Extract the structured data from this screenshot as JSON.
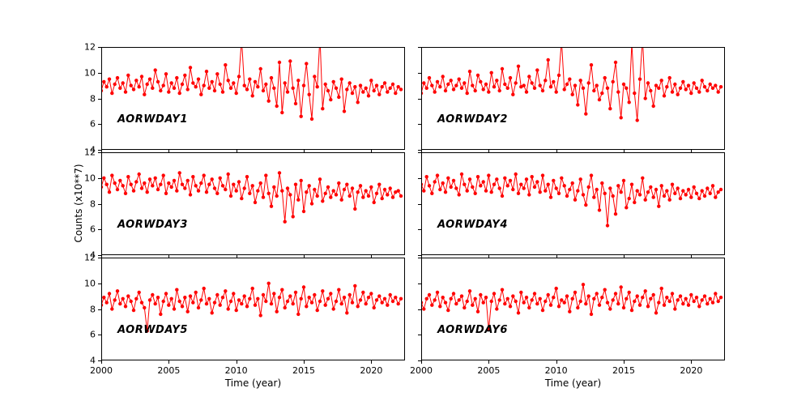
{
  "chart_data": {
    "type": "line",
    "layout": "3 rows x 2 columns of subplots",
    "marker": "circle",
    "line_color": "#ff0000",
    "marker_color": "#ff0000",
    "background": "#ffffff",
    "xlabel": "Time (year)",
    "ylabel": "Counts (x10**7)",
    "xlim": [
      2000,
      2022.5
    ],
    "ylim": [
      4,
      12
    ],
    "x_ticks": [
      2000,
      2005,
      2010,
      2015,
      2020
    ],
    "y_ticks": [
      12,
      10,
      8,
      6,
      4
    ],
    "x_start": 2000,
    "x_step": 0.2,
    "series": [
      {
        "name": "AORWDAY1",
        "values": [
          8.6,
          9.3,
          8.9,
          9.5,
          8.4,
          9.1,
          9.6,
          8.8,
          9.2,
          8.5,
          9.8,
          9.0,
          8.7,
          9.4,
          8.9,
          9.7,
          8.3,
          9.1,
          9.5,
          8.8,
          10.2,
          9.3,
          8.6,
          9.0,
          9.9,
          8.5,
          9.2,
          8.8,
          9.6,
          8.4,
          9.1,
          9.8,
          8.7,
          10.4,
          9.2,
          8.9,
          9.5,
          8.3,
          9.0,
          10.1,
          8.8,
          9.3,
          8.6,
          9.9,
          9.1,
          8.5,
          10.6,
          9.4,
          8.8,
          9.2,
          8.4,
          9.7,
          12.6,
          9.0,
          8.7,
          9.5,
          8.2,
          9.3,
          8.9,
          10.3,
          8.6,
          9.1,
          7.8,
          9.6,
          8.8,
          7.4,
          10.8,
          6.9,
          9.2,
          8.5,
          10.9,
          8.8,
          7.6,
          9.4,
          6.6,
          9.0,
          10.7,
          8.3,
          6.4,
          9.7,
          8.9,
          12.8,
          7.2,
          9.1,
          8.6,
          7.9,
          9.3,
          8.8,
          8.1,
          9.5,
          7.0,
          8.7,
          9.2,
          8.4,
          8.9,
          7.7,
          9.0,
          8.5,
          8.8,
          8.2,
          9.4,
          8.6,
          9.0,
          8.3,
          8.9,
          9.2,
          8.5,
          8.8,
          9.1,
          8.4,
          8.9,
          8.7
        ]
      },
      {
        "name": "AORWDAY2",
        "values": [
          8.4,
          9.2,
          8.8,
          9.6,
          9.0,
          8.5,
          9.3,
          8.9,
          9.7,
          8.6,
          9.1,
          9.4,
          8.7,
          9.0,
          9.5,
          8.8,
          9.2,
          8.4,
          10.1,
          9.0,
          8.6,
          9.8,
          9.3,
          8.7,
          9.1,
          8.5,
          10.0,
          8.9,
          9.4,
          8.6,
          10.3,
          9.1,
          8.8,
          9.6,
          8.3,
          9.2,
          10.5,
          8.9,
          9.0,
          8.5,
          9.7,
          9.2,
          8.8,
          10.2,
          9.0,
          8.6,
          9.4,
          11.0,
          8.9,
          9.3,
          8.5,
          9.8,
          12.5,
          8.7,
          9.1,
          9.5,
          8.3,
          9.0,
          7.5,
          9.4,
          8.8,
          6.8,
          9.2,
          10.6,
          8.6,
          9.0,
          7.9,
          8.4,
          9.6,
          8.8,
          7.2,
          9.3,
          10.8,
          8.5,
          6.5,
          9.1,
          8.8,
          7.7,
          12.3,
          8.4,
          6.3,
          9.5,
          12.7,
          8.0,
          9.2,
          8.6,
          7.4,
          9.0,
          8.8,
          9.4,
          8.2,
          8.9,
          9.6,
          8.5,
          9.1,
          8.3,
          8.8,
          9.3,
          8.7,
          9.0,
          8.4,
          9.2,
          8.8,
          8.5,
          9.4,
          8.9,
          8.6,
          9.1,
          8.8,
          9.0,
          8.5,
          8.9
        ]
      },
      {
        "name": "AORWDAY3",
        "values": [
          9.3,
          10.0,
          9.5,
          8.9,
          10.2,
          9.6,
          9.1,
          9.8,
          9.4,
          8.8,
          10.1,
          9.5,
          9.0,
          9.7,
          10.3,
          9.2,
          9.6,
          8.9,
          9.9,
          9.4,
          10.0,
          9.1,
          9.5,
          10.2,
          8.8,
          9.6,
          9.3,
          9.8,
          9.0,
          10.4,
          9.5,
          9.2,
          9.8,
          8.7,
          10.1,
          9.4,
          9.0,
          9.6,
          10.2,
          8.9,
          9.5,
          9.9,
          9.2,
          8.8,
          10.0,
          9.4,
          9.1,
          10.3,
          8.6,
          9.5,
          9.0,
          9.7,
          8.4,
          9.2,
          10.1,
          8.8,
          9.4,
          8.1,
          9.0,
          9.6,
          8.5,
          10.2,
          8.8,
          7.8,
          9.3,
          8.6,
          10.4,
          9.0,
          6.6,
          9.2,
          8.7,
          7.0,
          9.5,
          8.3,
          9.8,
          7.4,
          8.9,
          9.4,
          8.0,
          9.1,
          8.6,
          9.9,
          8.2,
          8.8,
          9.3,
          8.5,
          9.0,
          8.7,
          9.6,
          8.3,
          9.1,
          9.5,
          8.6,
          9.2,
          7.6,
          8.9,
          9.4,
          8.5,
          9.0,
          8.6,
          9.3,
          8.1,
          8.8,
          9.5,
          8.4,
          9.1,
          8.7,
          9.2,
          8.5,
          8.9,
          9.0,
          8.6
        ]
      },
      {
        "name": "AORWDAY4",
        "values": [
          9.5,
          9.0,
          10.1,
          9.4,
          8.8,
          9.7,
          10.2,
          9.1,
          9.6,
          8.9,
          10.0,
          9.3,
          9.8,
          9.2,
          8.7,
          10.3,
          9.5,
          9.0,
          9.9,
          9.3,
          8.8,
          10.1,
          9.4,
          9.7,
          9.0,
          10.2,
          8.9,
          9.5,
          9.9,
          9.2,
          8.6,
          10.0,
          9.4,
          9.8,
          9.1,
          10.3,
          8.8,
          9.5,
          9.2,
          9.9,
          8.7,
          10.1,
          9.3,
          9.7,
          8.9,
          10.2,
          9.0,
          9.5,
          8.5,
          9.8,
          9.2,
          8.8,
          10.0,
          9.4,
          8.6,
          9.1,
          9.6,
          8.3,
          9.0,
          9.9,
          8.7,
          7.9,
          9.3,
          10.2,
          8.5,
          9.1,
          7.5,
          9.6,
          8.8,
          6.3,
          9.2,
          8.6,
          7.2,
          9.4,
          8.9,
          9.8,
          7.7,
          8.4,
          9.5,
          8.1,
          9.0,
          8.7,
          10.0,
          8.3,
          8.9,
          9.3,
          8.5,
          9.1,
          7.8,
          9.4,
          8.6,
          9.0,
          8.3,
          9.5,
          8.8,
          9.2,
          8.4,
          9.0,
          8.7,
          9.1,
          8.5,
          9.3,
          8.8,
          8.4,
          9.0,
          8.6,
          9.2,
          8.8,
          9.4,
          8.5,
          8.9,
          9.1
        ]
      },
      {
        "name": "AORWDAY5",
        "values": [
          8.3,
          8.9,
          8.5,
          9.2,
          8.0,
          8.7,
          9.4,
          8.4,
          8.8,
          8.2,
          9.0,
          8.6,
          7.9,
          8.8,
          9.3,
          8.5,
          8.1,
          6.3,
          8.7,
          9.1,
          8.4,
          8.9,
          7.6,
          8.6,
          9.2,
          8.3,
          8.8,
          8.0,
          9.5,
          8.6,
          8.2,
          8.9,
          7.8,
          9.0,
          8.5,
          9.3,
          8.1,
          8.7,
          9.6,
          8.4,
          8.8,
          7.7,
          8.5,
          9.1,
          8.3,
          8.9,
          9.4,
          8.0,
          8.6,
          9.2,
          7.9,
          8.7,
          8.4,
          9.0,
          8.2,
          8.8,
          9.6,
          8.3,
          8.8,
          7.5,
          9.1,
          8.6,
          10.0,
          8.4,
          9.2,
          7.8,
          8.9,
          9.5,
          8.1,
          8.6,
          9.0,
          8.4,
          9.3,
          7.6,
          8.8,
          9.7,
          8.2,
          8.9,
          8.5,
          9.1,
          7.9,
          8.6,
          9.4,
          8.3,
          8.8,
          9.2,
          8.0,
          8.6,
          9.5,
          8.4,
          8.9,
          7.7,
          9.1,
          8.5,
          9.8,
          8.2,
          8.7,
          9.3,
          8.4,
          8.9,
          9.2,
          8.1,
          8.7,
          9.0,
          8.5,
          8.8,
          8.3,
          9.1,
          8.6,
          8.9,
          8.4,
          8.8
        ]
      },
      {
        "name": "AORWDAY6",
        "values": [
          8.5,
          8.0,
          8.8,
          9.1,
          8.3,
          8.7,
          9.3,
          8.2,
          8.9,
          8.5,
          7.9,
          8.8,
          9.2,
          8.4,
          8.7,
          9.0,
          8.1,
          8.6,
          9.4,
          8.3,
          8.8,
          7.8,
          9.1,
          8.5,
          8.9,
          6.4,
          8.6,
          9.2,
          8.0,
          8.7,
          9.5,
          8.4,
          8.8,
          8.2,
          9.0,
          8.6,
          7.7,
          9.3,
          8.5,
          8.9,
          8.1,
          8.7,
          9.2,
          8.4,
          8.8,
          7.9,
          8.6,
          9.1,
          8.3,
          8.9,
          9.6,
          8.2,
          8.7,
          8.5,
          9.0,
          7.8,
          8.8,
          9.3,
          8.1,
          8.6,
          9.9,
          8.4,
          9.0,
          7.6,
          8.8,
          9.2,
          8.3,
          8.9,
          9.5,
          8.5,
          8.0,
          8.7,
          9.2,
          8.4,
          9.7,
          8.1,
          8.8,
          9.3,
          7.9,
          8.6,
          9.0,
          8.3,
          8.9,
          9.4,
          8.2,
          8.8,
          9.1,
          7.7,
          8.5,
          9.6,
          8.3,
          8.9,
          8.6,
          9.2,
          8.0,
          8.7,
          9.0,
          8.4,
          8.8,
          8.3,
          9.1,
          8.6,
          8.9,
          8.2,
          8.7,
          9.0,
          8.4,
          8.8,
          8.5,
          9.2,
          8.6,
          8.9
        ]
      }
    ]
  }
}
